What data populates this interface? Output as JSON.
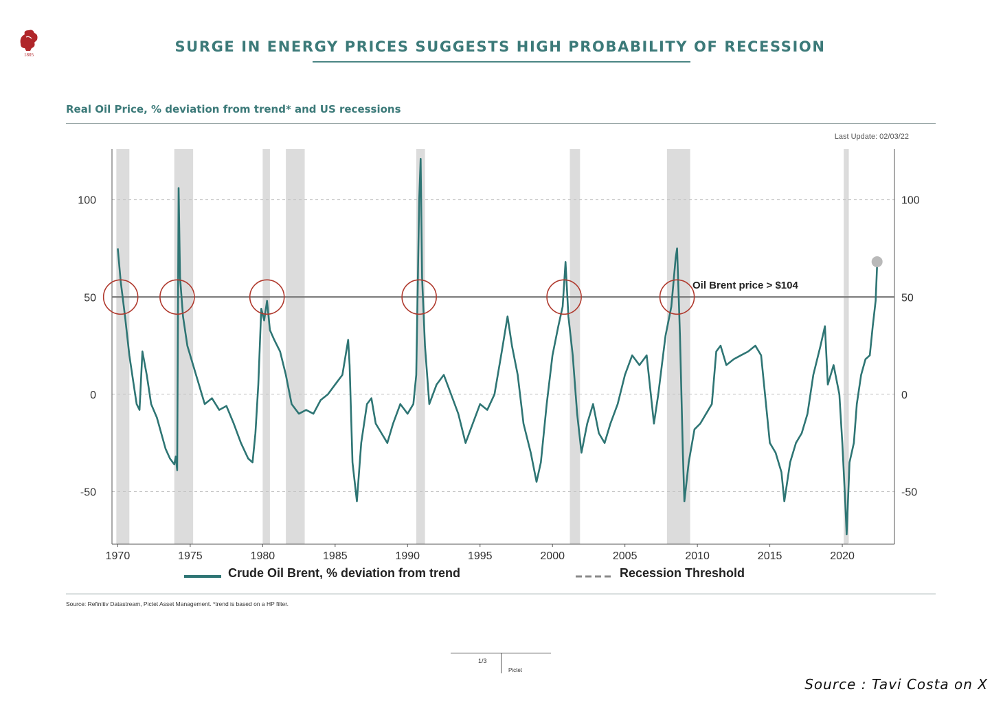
{
  "header": {
    "title": "SURGE IN ENERGY PRICES SUGGESTS HIGH PROBABILITY OF RECESSION",
    "logo_icon": "lion-crest-icon",
    "logo_year": "1805"
  },
  "subtitle": "Real Oil Price, % deviation from trend* and US recessions",
  "last_update": "Last Update: 02/03/22",
  "annotation": "Oil Brent price > $104",
  "legend": {
    "series_label": "Crude Oil Brent, % deviation from trend",
    "threshold_label": "Recession Threshold"
  },
  "footer": {
    "source_note": "Source: Refinitiv Datastream, Pictet Asset Management. *trend is based on a HP filter.",
    "page_number": "1/3",
    "brand": "Pictet",
    "credit": "Source : Tavi Costa on X"
  },
  "colors": {
    "series": "#2e7574",
    "title": "#3c7a79",
    "recession_band": "#dcdcdc",
    "threshold_line": "#7a7a7a",
    "circle": "#b03a2e"
  },
  "chart_data": {
    "type": "line",
    "title": "Real Oil Price, % deviation from trend* and US recessions",
    "xlim": [
      1969.6,
      2023.6
    ],
    "ylim": [
      -77,
      126
    ],
    "x_ticks": [
      1970,
      1975,
      1980,
      1985,
      1990,
      1995,
      2000,
      2005,
      2010,
      2015,
      2020
    ],
    "y_ticks": [
      100,
      50,
      0,
      -50
    ],
    "y_tick_labels": [
      "100",
      "50",
      "0",
      "-50"
    ],
    "grid": "horizontal-dashed",
    "legend_position": "bottom",
    "recession_threshold": 50,
    "recessions": [
      [
        1969.9,
        1970.8
      ],
      [
        1973.9,
        1975.2
      ],
      [
        1980.0,
        1980.5
      ],
      [
        1981.6,
        1982.9
      ],
      [
        1990.6,
        1991.2
      ],
      [
        2001.2,
        2001.9
      ],
      [
        2007.9,
        2009.5
      ],
      [
        2020.1,
        2020.4
      ]
    ],
    "highlight_circles_x": [
      1970.2,
      1974.1,
      1980.3,
      1990.8,
      2000.8,
      2008.6
    ],
    "series": [
      {
        "name": "Crude Oil Brent, % deviation from trend",
        "points": [
          [
            1970.0,
            75
          ],
          [
            1970.2,
            58
          ],
          [
            1970.5,
            40
          ],
          [
            1970.8,
            20
          ],
          [
            1971.1,
            5
          ],
          [
            1971.3,
            -5
          ],
          [
            1971.5,
            -8
          ],
          [
            1971.7,
            22
          ],
          [
            1972.0,
            10
          ],
          [
            1972.3,
            -5
          ],
          [
            1972.7,
            -12
          ],
          [
            1973.0,
            -20
          ],
          [
            1973.3,
            -28
          ],
          [
            1973.6,
            -33
          ],
          [
            1973.9,
            -36
          ],
          [
            1974.0,
            -32
          ],
          [
            1974.1,
            -39
          ],
          [
            1974.2,
            106
          ],
          [
            1974.3,
            60
          ],
          [
            1974.5,
            40
          ],
          [
            1974.8,
            25
          ],
          [
            1975.2,
            15
          ],
          [
            1975.6,
            5
          ],
          [
            1976.0,
            -5
          ],
          [
            1976.5,
            -2
          ],
          [
            1977.0,
            -8
          ],
          [
            1977.5,
            -6
          ],
          [
            1978.0,
            -15
          ],
          [
            1978.5,
            -25
          ],
          [
            1979.0,
            -33
          ],
          [
            1979.3,
            -35
          ],
          [
            1979.5,
            -20
          ],
          [
            1979.7,
            5
          ],
          [
            1979.9,
            44
          ],
          [
            1980.1,
            38
          ],
          [
            1980.3,
            48
          ],
          [
            1980.5,
            33
          ],
          [
            1980.8,
            28
          ],
          [
            1981.2,
            22
          ],
          [
            1981.6,
            10
          ],
          [
            1982.0,
            -5
          ],
          [
            1982.5,
            -10
          ],
          [
            1983.0,
            -8
          ],
          [
            1983.5,
            -10
          ],
          [
            1984.0,
            -3
          ],
          [
            1984.5,
            0
          ],
          [
            1985.0,
            5
          ],
          [
            1985.5,
            10
          ],
          [
            1985.9,
            28
          ],
          [
            1986.0,
            15
          ],
          [
            1986.2,
            -35
          ],
          [
            1986.5,
            -55
          ],
          [
            1986.8,
            -25
          ],
          [
            1987.2,
            -5
          ],
          [
            1987.5,
            -2
          ],
          [
            1987.8,
            -15
          ],
          [
            1988.2,
            -20
          ],
          [
            1988.6,
            -25
          ],
          [
            1989.0,
            -15
          ],
          [
            1989.5,
            -5
          ],
          [
            1990.0,
            -10
          ],
          [
            1990.4,
            -5
          ],
          [
            1990.6,
            10
          ],
          [
            1990.8,
            100
          ],
          [
            1990.9,
            121
          ],
          [
            1991.0,
            60
          ],
          [
            1991.2,
            25
          ],
          [
            1991.5,
            -5
          ],
          [
            1992.0,
            5
          ],
          [
            1992.5,
            10
          ],
          [
            1993.0,
            0
          ],
          [
            1993.5,
            -10
          ],
          [
            1994.0,
            -25
          ],
          [
            1994.5,
            -15
          ],
          [
            1995.0,
            -5
          ],
          [
            1995.5,
            -8
          ],
          [
            1996.0,
            0
          ],
          [
            1996.5,
            22
          ],
          [
            1996.9,
            40
          ],
          [
            1997.2,
            25
          ],
          [
            1997.6,
            10
          ],
          [
            1998.0,
            -15
          ],
          [
            1998.5,
            -30
          ],
          [
            1998.9,
            -45
          ],
          [
            1999.2,
            -35
          ],
          [
            1999.6,
            -5
          ],
          [
            2000.0,
            20
          ],
          [
            2000.4,
            35
          ],
          [
            2000.7,
            45
          ],
          [
            2000.9,
            68
          ],
          [
            2001.1,
            40
          ],
          [
            2001.4,
            20
          ],
          [
            2001.7,
            -10
          ],
          [
            2002.0,
            -30
          ],
          [
            2002.4,
            -15
          ],
          [
            2002.8,
            -5
          ],
          [
            2003.2,
            -20
          ],
          [
            2003.6,
            -25
          ],
          [
            2004.0,
            -15
          ],
          [
            2004.5,
            -5
          ],
          [
            2005.0,
            10
          ],
          [
            2005.5,
            20
          ],
          [
            2006.0,
            15
          ],
          [
            2006.5,
            20
          ],
          [
            2007.0,
            -15
          ],
          [
            2007.3,
            0
          ],
          [
            2007.8,
            30
          ],
          [
            2008.2,
            45
          ],
          [
            2008.5,
            70
          ],
          [
            2008.6,
            75
          ],
          [
            2008.8,
            30
          ],
          [
            2009.0,
            -30
          ],
          [
            2009.1,
            -55
          ],
          [
            2009.4,
            -35
          ],
          [
            2009.8,
            -18
          ],
          [
            2010.2,
            -15
          ],
          [
            2010.6,
            -10
          ],
          [
            2011.0,
            -5
          ],
          [
            2011.3,
            22
          ],
          [
            2011.6,
            25
          ],
          [
            2012.0,
            15
          ],
          [
            2012.5,
            18
          ],
          [
            2013.0,
            20
          ],
          [
            2013.5,
            22
          ],
          [
            2014.0,
            25
          ],
          [
            2014.4,
            20
          ],
          [
            2014.8,
            -10
          ],
          [
            2015.0,
            -25
          ],
          [
            2015.4,
            -30
          ],
          [
            2015.8,
            -40
          ],
          [
            2016.0,
            -55
          ],
          [
            2016.4,
            -35
          ],
          [
            2016.8,
            -25
          ],
          [
            2017.2,
            -20
          ],
          [
            2017.6,
            -10
          ],
          [
            2018.0,
            10
          ],
          [
            2018.5,
            25
          ],
          [
            2018.8,
            35
          ],
          [
            2019.0,
            5
          ],
          [
            2019.4,
            15
          ],
          [
            2019.8,
            0
          ],
          [
            2020.0,
            -25
          ],
          [
            2020.2,
            -55
          ],
          [
            2020.3,
            -72
          ],
          [
            2020.5,
            -35
          ],
          [
            2020.8,
            -25
          ],
          [
            2021.0,
            -5
          ],
          [
            2021.3,
            10
          ],
          [
            2021.6,
            18
          ],
          [
            2021.9,
            20
          ],
          [
            2022.1,
            35
          ],
          [
            2022.3,
            48
          ],
          [
            2022.4,
            66
          ]
        ]
      }
    ]
  }
}
